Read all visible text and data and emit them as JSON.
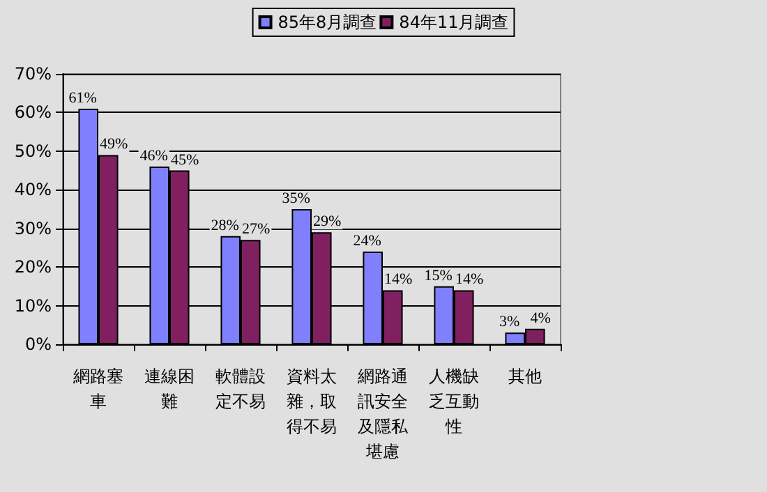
{
  "chart_data": {
    "type": "bar",
    "categories": [
      "網路塞車",
      "連線困難",
      "軟體設定不易",
      "資料太雜，取得不易",
      "網路通訊安全及隱私堪慮",
      "人機缺乏互動性",
      "其他"
    ],
    "series": [
      {
        "name": "85年8月調查",
        "color": "#8080ff",
        "values": [
          61,
          46,
          28,
          35,
          24,
          15,
          3
        ],
        "value_labels": [
          "61%",
          "46%",
          "28%",
          "35%",
          "24%",
          "15%",
          "3%"
        ]
      },
      {
        "name": "84年11月調查",
        "color": "#802060",
        "values": [
          49,
          45,
          27,
          29,
          14,
          14,
          4
        ],
        "value_labels": [
          "49%",
          "45%",
          "27%",
          "29%",
          "14%",
          "14%",
          "4%"
        ]
      }
    ],
    "ylim": [
      0,
      70
    ],
    "yticks": [
      {
        "value": 0,
        "label": "0%"
      },
      {
        "value": 10,
        "label": "10%"
      },
      {
        "value": 20,
        "label": "20%"
      },
      {
        "value": 30,
        "label": "30%"
      },
      {
        "value": 40,
        "label": "40%"
      },
      {
        "value": 50,
        "label": "50%"
      },
      {
        "value": 60,
        "label": "60%"
      },
      {
        "value": 70,
        "label": "70%"
      }
    ],
    "grid": "y",
    "legend": "top"
  }
}
